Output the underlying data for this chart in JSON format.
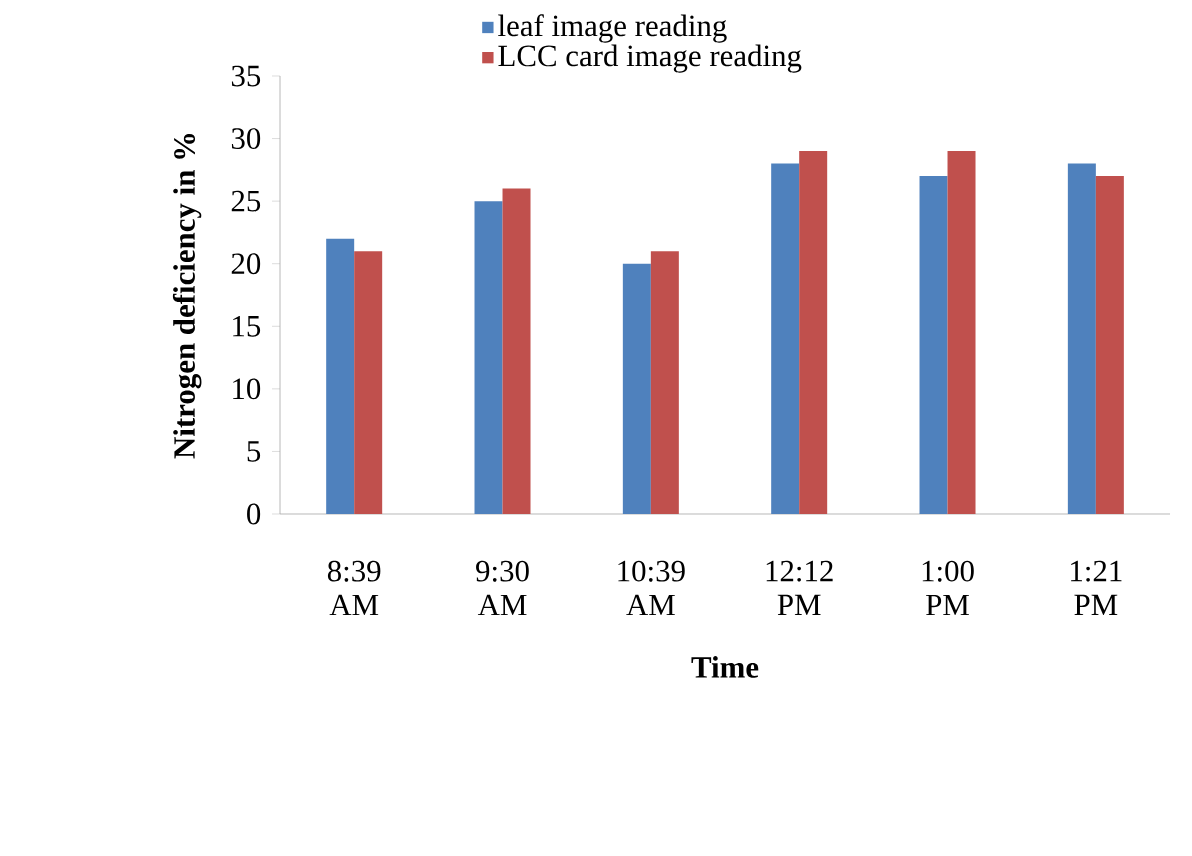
{
  "chart_data": {
    "type": "bar",
    "xlabel": "Time",
    "ylabel": "Nitrogen deficiency in %",
    "categories": [
      "8:39 AM",
      "9:30 AM",
      "10:39 AM",
      "12:12 PM",
      "1:00 PM",
      "1:21 PM"
    ],
    "series": [
      {
        "name": "leaf image reading",
        "color": "#4f81bd",
        "values": [
          22,
          25,
          20,
          28,
          27,
          28
        ]
      },
      {
        "name": "LCC card image reading",
        "color": "#c0504d",
        "values": [
          21,
          26,
          21,
          29,
          29,
          27
        ]
      }
    ],
    "ylim": [
      0,
      35
    ],
    "yticks": [
      0,
      5,
      10,
      15,
      20,
      25,
      30,
      35
    ],
    "grid": false,
    "legend": "top"
  }
}
